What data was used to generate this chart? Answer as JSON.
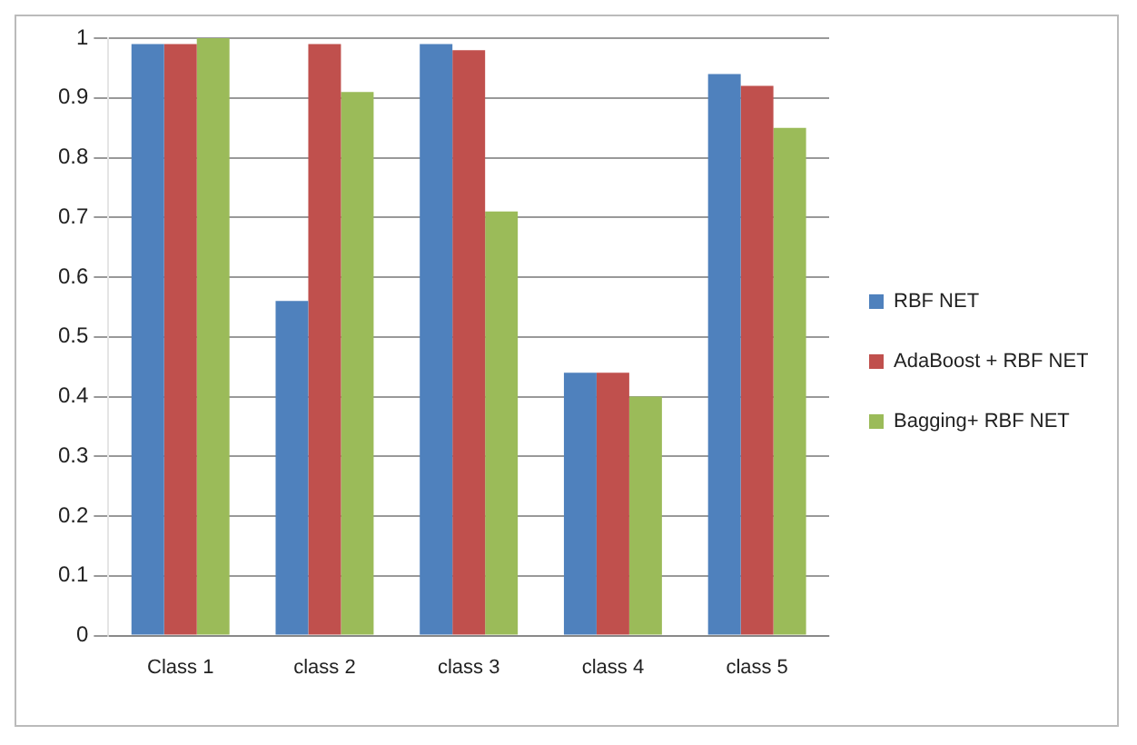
{
  "chart_data": {
    "type": "bar",
    "categories": [
      "Class 1",
      "class 2",
      "class 3",
      "class 4",
      "class 5"
    ],
    "series": [
      {
        "name": "RBF NET",
        "color": "#4f81bd",
        "values": [
          0.99,
          0.56,
          0.99,
          0.44,
          0.94
        ]
      },
      {
        "name": "AdaBoost + RBF NET",
        "color": "#c0504d",
        "values": [
          0.99,
          0.99,
          0.98,
          0.44,
          0.92
        ]
      },
      {
        "name": "Bagging+ RBF NET",
        "color": "#9bbb59",
        "values": [
          1.0,
          0.91,
          0.71,
          0.4,
          0.85
        ]
      }
    ],
    "ylim": [
      0,
      1
    ],
    "yticks": [
      0,
      0.1,
      0.2,
      0.3,
      0.4,
      0.5,
      0.6,
      0.7,
      0.8,
      0.9,
      1
    ],
    "grid": "y",
    "legend": "right"
  }
}
